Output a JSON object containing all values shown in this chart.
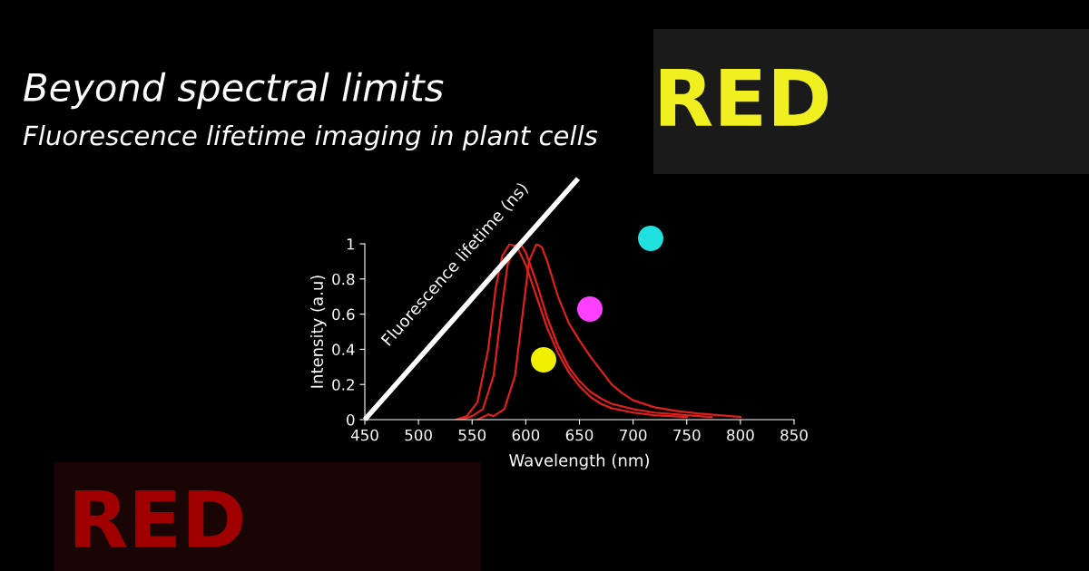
{
  "chart_data": {
    "type": "line",
    "title": "Beyond spectral limits",
    "subtitle": "Fluorescence lifetime imaging in plant cells",
    "xlabel": "Wavelength (nm)",
    "ylabel": "Intensity (a.u)",
    "annotations": [
      "Fluorescence lifetime (ns)",
      "RED",
      "RED"
    ],
    "xlim": [
      450,
      850
    ],
    "xticks": [
      450,
      500,
      550,
      600,
      650,
      700,
      750,
      800,
      850
    ],
    "ylim": [
      0,
      1
    ],
    "yticks": [
      0,
      {
        "value": 0.2,
        "label": "0.2"
      },
      {
        "value": 0.4,
        "label": "0.4"
      },
      {
        "value": 0.6,
        "label": "0.6"
      },
      {
        "value": 0.8,
        "label": "0.8"
      },
      1
    ],
    "grid": false,
    "marker": "none",
    "line_style": "solid",
    "series": [
      {
        "color": "#e0201c",
        "x": [
          535,
          545,
          555,
          565,
          572,
          578,
          585,
          592,
          600,
          610,
          620,
          630,
          640,
          650,
          660,
          670,
          680,
          700,
          720,
          750
        ],
        "values": [
          0,
          0.02,
          0.1,
          0.4,
          0.75,
          0.93,
          1.0,
          0.98,
          0.88,
          0.7,
          0.52,
          0.38,
          0.27,
          0.19,
          0.13,
          0.09,
          0.065,
          0.04,
          0.025,
          0.015
        ]
      },
      {
        "color": "#e0201c",
        "x": [
          540,
          550,
          560,
          570,
          578,
          583,
          590,
          595,
          600,
          610,
          620,
          630,
          640,
          650,
          660,
          670,
          680,
          700,
          720,
          750,
          773
        ],
        "values": [
          0,
          0.02,
          0.06,
          0.25,
          0.65,
          0.88,
          0.99,
          1.0,
          0.95,
          0.78,
          0.58,
          0.42,
          0.3,
          0.22,
          0.16,
          0.12,
          0.09,
          0.06,
          0.04,
          0.025,
          0.015
        ]
      },
      {
        "color": "#e0201c",
        "x": [
          555,
          562,
          565,
          570,
          580,
          590,
          597,
          603,
          610,
          615,
          620,
          630,
          640,
          650,
          660,
          670,
          680,
          690,
          700,
          720,
          740,
          760,
          780,
          800
        ],
        "values": [
          0,
          0.02,
          0.03,
          0.02,
          0.06,
          0.25,
          0.6,
          0.9,
          1.0,
          0.98,
          0.9,
          0.7,
          0.55,
          0.45,
          0.36,
          0.28,
          0.2,
          0.15,
          0.11,
          0.07,
          0.05,
          0.035,
          0.025,
          0.015
        ]
      }
    ]
  }
}
